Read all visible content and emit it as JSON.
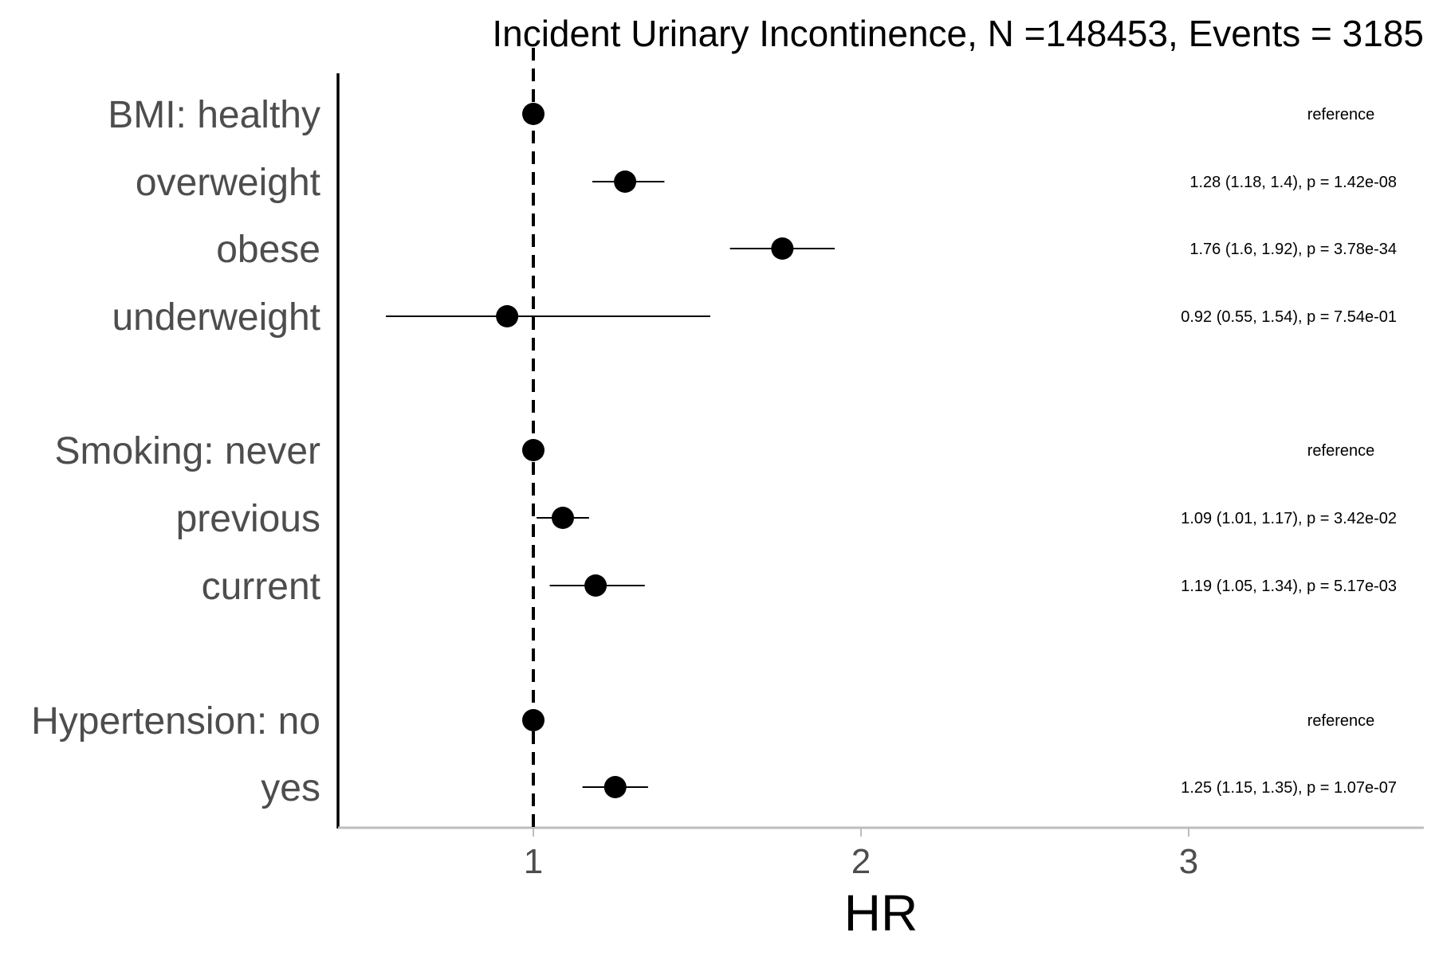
{
  "chart_data": {
    "type": "forest",
    "title": "Incident Urinary Incontinence, N =148453, Events = 3185",
    "xlabel": "HR",
    "xlim": [
      0.4,
      3.7
    ],
    "xticks": [
      1,
      2,
      3
    ],
    "reference_line": 1,
    "rows": [
      {
        "label": "BMI: healthy",
        "hr": 1.0,
        "lo": null,
        "hi": null,
        "annotation": "reference"
      },
      {
        "label": "overweight",
        "hr": 1.28,
        "lo": 1.18,
        "hi": 1.4,
        "annotation": "1.28 (1.18, 1.4), p = 1.42e-08"
      },
      {
        "label": "obese",
        "hr": 1.76,
        "lo": 1.6,
        "hi": 1.92,
        "annotation": "1.76 (1.6, 1.92), p = 3.78e-34"
      },
      {
        "label": "underweight",
        "hr": 0.92,
        "lo": 0.55,
        "hi": 1.54,
        "annotation": "0.92 (0.55, 1.54), p = 7.54e-01"
      },
      {
        "label": "Smoking: never",
        "hr": 1.0,
        "lo": null,
        "hi": null,
        "annotation": "reference"
      },
      {
        "label": "previous",
        "hr": 1.09,
        "lo": 1.01,
        "hi": 1.17,
        "annotation": "1.09 (1.01, 1.17), p = 3.42e-02"
      },
      {
        "label": "current",
        "hr": 1.19,
        "lo": 1.05,
        "hi": 1.34,
        "annotation": "1.19 (1.05, 1.34), p = 5.17e-03"
      },
      {
        "label": "Hypertension: no",
        "hr": 1.0,
        "lo": null,
        "hi": null,
        "annotation": "reference"
      },
      {
        "label": "yes",
        "hr": 1.25,
        "lo": 1.15,
        "hi": 1.35,
        "annotation": "1.25 (1.15, 1.35), p = 1.07e-07"
      }
    ]
  }
}
